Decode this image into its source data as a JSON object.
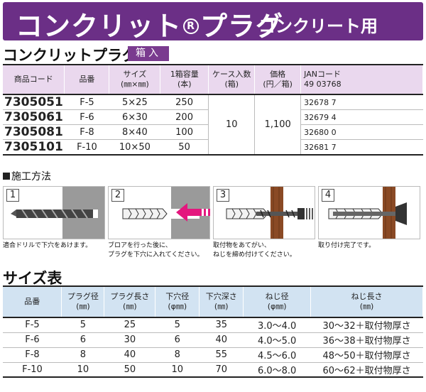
{
  "banner": {
    "title_pre": "コンクリット",
    "reg_mark": "R",
    "title_post": "プラグ",
    "subtitle": "コンクリート用"
  },
  "section1": {
    "title": "コンクリットプラグ",
    "badge": "箱入"
  },
  "product_table": {
    "headers": [
      "商品コード",
      "品番",
      "サイズ\n(㎜×㎜)",
      "1箱容量\n(本)",
      "ケース入数\n(箱)",
      "価格\n(円／箱)",
      "JANコード\n49 03768"
    ],
    "rows": [
      {
        "code": "7305051",
        "part": "F-5",
        "size": "5×25",
        "qty": "250",
        "jan": "32678 7"
      },
      {
        "code": "7305061",
        "part": "F-6",
        "size": "6×30",
        "qty": "200",
        "jan": "32679 4"
      },
      {
        "code": "7305081",
        "part": "F-8",
        "size": "8×40",
        "qty": "100",
        "jan": "32680 0"
      },
      {
        "code": "7305101",
        "part": "F-10",
        "size": "10×50",
        "qty": "50",
        "jan": "32681 7"
      }
    ],
    "case_qty": "10",
    "price": "1,100"
  },
  "section2": {
    "title": "施工方法"
  },
  "steps": [
    {
      "num": "1",
      "text": [
        "適合ドリルで下穴をあけます。"
      ]
    },
    {
      "num": "2",
      "text": [
        "ブロアを行った後に、",
        "プラグを下穴に入れてください。"
      ]
    },
    {
      "num": "3",
      "text": [
        "取付物をあてがい、",
        "ねじを締め付けてください。"
      ]
    },
    {
      "num": "4",
      "text": [
        "取り付け完了です。"
      ]
    }
  ],
  "section3": {
    "title": "サイズ表"
  },
  "size_table": {
    "headers": [
      "品番",
      "プラグ径\n(㎜)",
      "プラグ長さ\n(㎜)",
      "下穴径\n(φ㎜)",
      "下穴深さ\n(㎜)",
      "ねじ径\n(φ㎜)",
      "ねじ長さ\n(㎜)"
    ],
    "rows": [
      [
        "F-5",
        "5",
        "25",
        "5",
        "35",
        "3.0～4.0",
        "30～32＋取付物厚さ"
      ],
      [
        "F-6",
        "6",
        "30",
        "6",
        "40",
        "4.0～5.0",
        "36～38＋取付物厚さ"
      ],
      [
        "F-8",
        "8",
        "40",
        "8",
        "55",
        "4.5～6.0",
        "48～50＋取付物厚さ"
      ],
      [
        "F-10",
        "10",
        "50",
        "10",
        "70",
        "6.0～8.0",
        "60～62＋取付物厚さ"
      ]
    ]
  },
  "colors": {
    "banner": "#6b2f86",
    "badge": "#7a3b8f",
    "product_header": "#ead8ee",
    "size_header": "#d2e3f2",
    "arrow": "#e4177e",
    "wood": "#8a4a25"
  }
}
